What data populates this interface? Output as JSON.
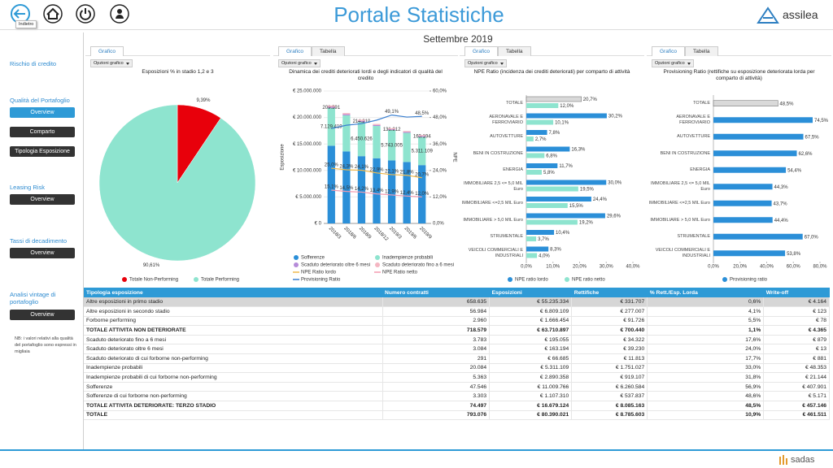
{
  "header": {
    "title": "Portale Statistiche",
    "back_tooltip": "Indietro",
    "logo": "assilea"
  },
  "subtitle": "Settembre 2019",
  "sidebar": {
    "sections": [
      {
        "title": "Rischio di credito",
        "buttons": []
      },
      {
        "title": "Qualità del Portafoglio",
        "buttons": [
          {
            "label": "Overview",
            "active": true
          },
          {
            "label": "Comparto",
            "active": false
          },
          {
            "label": "Tipologia Esposizione",
            "active": false
          }
        ]
      },
      {
        "title": "Leasing Risk",
        "buttons": [
          {
            "label": "Overview",
            "active": false
          }
        ]
      },
      {
        "title": "Tassi di decadimento",
        "buttons": [
          {
            "label": "Overview",
            "active": false
          }
        ]
      },
      {
        "title": "Analisi vintage di portafoglio",
        "buttons": [
          {
            "label": "Overview",
            "active": false
          }
        ]
      }
    ],
    "note": "NB: i valori relativi alla qualità del portafoglio sono espressi in migliaia"
  },
  "chart_data": [
    {
      "type": "pie",
      "tabs": [
        "Grafico"
      ],
      "options": "Opzioni grafico",
      "title": "Esposizioni % in stadio 1,2 e 3",
      "categories": [
        "Totale Non-Performing",
        "Totale Performing"
      ],
      "values": [
        9.39,
        90.61
      ],
      "value_labels": [
        "9,39%",
        "90,61%"
      ],
      "colors": [
        "#e8000b",
        "#8ee4cf"
      ]
    },
    {
      "type": "bar_line",
      "tabs": [
        "Grafico",
        "Tabella"
      ],
      "options": "Opzioni grafico",
      "title": "Dinamica dei crediti deteriorati lordi e degli indicatori di qualità del credito",
      "y_label": "Esposizione",
      "y2_label": "NPE",
      "categories": [
        "2018/3",
        "2018/6",
        "2018/9",
        "2018/12",
        "2019/3",
        "2019/6",
        "2019/9"
      ],
      "ylim": [
        0,
        25000000
      ],
      "yticks": [
        {
          "value": 0,
          "label": "€ 0"
        },
        {
          "value": 5000000,
          "label": "€ 5.000.000"
        },
        {
          "value": 10000000,
          "label": "€ 10.000.000"
        },
        {
          "value": 15000000,
          "label": "€ 15.000.000"
        },
        {
          "value": 20000000,
          "label": "€ 20.000.000"
        },
        {
          "value": 25000000,
          "label": "€ 25.000.000"
        }
      ],
      "y2lim": [
        0,
        60
      ],
      "y2ticks": [
        {
          "value": 0,
          "label": "0,0%"
        },
        {
          "value": 12,
          "label": "12,0%"
        },
        {
          "value": 24,
          "label": "24,0%"
        },
        {
          "value": 36,
          "label": "36,0%"
        },
        {
          "value": 48,
          "label": "48,0%"
        },
        {
          "value": 60,
          "label": "60,0%"
        }
      ],
      "grid": true,
      "series": [
        {
          "name": "Sofferenze",
          "type": "bar",
          "color": "#2b8fd8",
          "values": [
            14670000,
            13600000,
            12700000,
            12300000,
            11900000,
            11600000,
            11009766
          ]
        },
        {
          "name": "Inadempienze probabili",
          "type": "bar",
          "color": "#8ee4cf",
          "values": [
            7129419,
            6800000,
            6450626,
            6100000,
            5743005,
            5500000,
            5311109
          ],
          "value_labels": [
            "7.129.419",
            null,
            "6.450.626",
            null,
            "5.743.005",
            null,
            "5.311.109"
          ]
        },
        {
          "name": "Scaduto deteriorato oltre 6 mesi",
          "type": "bar",
          "color": "#b58bd9",
          "values": [
            209591,
            210000,
            214210,
            170000,
            131212,
            150000,
            163194
          ],
          "value_labels": [
            "209.591",
            null,
            "214.210",
            null,
            "131.212",
            null,
            "163.194"
          ]
        },
        {
          "name": "Scaduto deteriorato fino a 6 mesi",
          "type": "bar",
          "color": "#f4b6c2",
          "values": [
            250000,
            230000,
            220000,
            210000,
            200000,
            200000,
            195055
          ]
        },
        {
          "name": "NPE Ratio lordo",
          "type": "line",
          "axis": "y2",
          "color": "#f0b84a",
          "values": [
            25.0,
            24.3,
            24.1,
            22.9,
            22.1,
            21.8,
            20.7
          ],
          "value_labels": [
            "25,0%",
            "24,3%",
            "24,1%",
            "22,9%",
            "22,1%",
            "21,8%",
            "20,7%"
          ]
        },
        {
          "name": "NPE Ratio netto",
          "type": "line",
          "axis": "y2",
          "color": "#f29ab0",
          "values": [
            15.1,
            14.5,
            14.2,
            13.4,
            12.9,
            12.4,
            12.0
          ],
          "value_labels": [
            "15,1%",
            "14,5%",
            "14,2%",
            "13,4%",
            "12,9%",
            "12,4%",
            "12,0%"
          ]
        },
        {
          "name": "Provisioning Ratio",
          "type": "line",
          "axis": "y2",
          "color": "#3a7fd0",
          "values": [
            43.0,
            44.5,
            45.2,
            46.8,
            49.1,
            48.2,
            48.5
          ],
          "value_labels": [
            null,
            null,
            null,
            null,
            "49,1%",
            null,
            "48,5%"
          ]
        }
      ]
    },
    {
      "type": "hbar",
      "tabs": [
        "Grafico",
        "Tabella"
      ],
      "options": "Opzioni grafico",
      "title": "NPE Ratio (incidenza dei crediti deteriorati) per comparto di attività",
      "categories": [
        "TOTALE",
        "AERONAVALE E FERROVIARIO",
        "AUTOVETTURE",
        "BENI IN COSTRUZIONE",
        "ENERGIA",
        "IMMOBILIARE 2,5 <= 5,0 MIL Euro",
        "IMMOBILIARE <=2,5 MIL Euro",
        "IMMOBILIARE > 5,0 MIL Euro",
        "STRUMENTALE",
        "VEICOLI COMMERCIALI E INDUSTRIALI"
      ],
      "xlim": [
        0,
        40
      ],
      "xticks": [
        {
          "value": 0,
          "label": "0,0%"
        },
        {
          "value": 10,
          "label": "10,0%"
        },
        {
          "value": 20,
          "label": "20,0%"
        },
        {
          "value": 30,
          "label": "30,0%"
        },
        {
          "value": 40,
          "label": "40,0%"
        }
      ],
      "series": [
        {
          "name": "NPE ratio lordo",
          "color": "#2b8fd8",
          "colors": [
            "#d9d9d9",
            "#2b8fd8",
            "#2b8fd8",
            "#2b8fd8",
            "#2b8fd8",
            "#2b8fd8",
            "#2b8fd8",
            "#2b8fd8",
            "#2b8fd8",
            "#2b8fd8"
          ],
          "values": [
            20.7,
            30.2,
            7.8,
            16.3,
            11.7,
            30.0,
            24.4,
            29.6,
            10.4,
            8.3
          ],
          "value_labels": [
            "20,7%",
            "30,2%",
            "7,8%",
            "16,3%",
            "11,7%",
            "30,0%",
            "24,4%",
            "29,6%",
            "10,4%",
            "8,3%"
          ]
        },
        {
          "name": "NPE ratio netto",
          "color": "#8ee4cf",
          "values": [
            12.0,
            10.1,
            2.7,
            6.8,
            5.8,
            19.5,
            15.5,
            19.2,
            3.7,
            4.0
          ],
          "value_labels": [
            "12,0%",
            "10,1%",
            "2,7%",
            "6,8%",
            "5,8%",
            "19,5%",
            "15,5%",
            "19,2%",
            "3,7%",
            "4,0%"
          ]
        }
      ]
    },
    {
      "type": "hbar",
      "tabs": [
        "Grafico",
        "Tabella"
      ],
      "options": "Opzioni grafico",
      "title": "Provisioning Ratio (rettifiche su esposizione deteriorata lorda per comparto di attività)",
      "categories": [
        "TOTALE",
        "AERONAVALE E FERROVIARIO",
        "AUTOVETTURE",
        "BENI IN COSTRUZIONE",
        "ENERGIA",
        "IMMOBILIARE 2,5 <= 5,0 MIL Euro",
        "IMMOBILIARE <=2,5 MIL Euro",
        "IMMOBILIARE > 5,0 MIL Euro",
        "STRUMENTALE",
        "VEICOLI COMMERCIALI E INDUSTRIALI"
      ],
      "xlim": [
        0,
        80
      ],
      "xticks": [
        {
          "value": 0,
          "label": "0,0%"
        },
        {
          "value": 20,
          "label": "20,0%"
        },
        {
          "value": 40,
          "label": "40,0%"
        },
        {
          "value": 60,
          "label": "60,0%"
        },
        {
          "value": 80,
          "label": "80,0%"
        }
      ],
      "series": [
        {
          "name": "Provisioning ratio",
          "color": "#2b8fd8",
          "colors": [
            "#d9d9d9",
            "#2b8fd8",
            "#2b8fd8",
            "#2b8fd8",
            "#2b8fd8",
            "#2b8fd8",
            "#2b8fd8",
            "#2b8fd8",
            "#2b8fd8",
            "#2b8fd8"
          ],
          "values": [
            48.5,
            74.5,
            67.5,
            62.6,
            54.4,
            44.3,
            43.7,
            44.4,
            67.0,
            53.8
          ],
          "value_labels": [
            "48,5%",
            "74,5%",
            "67,5%",
            "62,6%",
            "54,4%",
            "44,3%",
            "43,7%",
            "44,4%",
            "67,0%",
            "53,8%"
          ]
        }
      ]
    }
  ],
  "table": {
    "columns": [
      "Tipologia esposizione",
      "Numero contratti",
      "Esposizioni",
      "Rettifiche",
      "% Rett./Esp. Lorda",
      "Write-off"
    ],
    "rows": [
      {
        "selected": true,
        "cells": [
          "Altre esposizioni in primo stadio",
          "658.635",
          "€ 55.235.334",
          "€ 331.707",
          "0,6%",
          "€ 4.164"
        ]
      },
      {
        "cells": [
          "Altre esposizioni in secondo stadio",
          "56.984",
          "€ 6.809.109",
          "€ 277.007",
          "4,1%",
          "€ 123"
        ]
      },
      {
        "cells": [
          "Forborne performing",
          "2.960",
          "€ 1.666.454",
          "€ 91.726",
          "5,5%",
          "€ 78"
        ]
      },
      {
        "bold": true,
        "cells": [
          "TOTALE ATTIVITA NON DETERIORATE",
          "718.579",
          "€ 63.710.897",
          "€ 700.440",
          "1,1%",
          "€ 4.365"
        ]
      },
      {
        "cells": [
          "Scaduto deteriorato fino a 6 mesi",
          "3.783",
          "€ 195.055",
          "€ 34.322",
          "17,6%",
          "€ 879"
        ]
      },
      {
        "cells": [
          "Scaduto deteriorato oltre 6 mesi",
          "3.084",
          "€ 163.194",
          "€ 39.230",
          "24,0%",
          "€ 13"
        ]
      },
      {
        "cells": [
          "Scaduto deteriorato di cui forborne non-performing",
          "291",
          "€ 66.685",
          "€ 11.813",
          "17,7%",
          "€ 881"
        ]
      },
      {
        "cells": [
          "Inadempienze probabili",
          "20.084",
          "€ 5.311.109",
          "€ 1.751.027",
          "33,0%",
          "€ 48.353"
        ]
      },
      {
        "cells": [
          "Inadempienze probabili di cui forborne non-performing",
          "5.363",
          "€ 2.890.358",
          "€ 919.107",
          "31,8%",
          "€ 21.144"
        ]
      },
      {
        "cells": [
          "Sofferenze",
          "47.546",
          "€ 11.009.766",
          "€ 6.260.584",
          "56,9%",
          "€ 407.901"
        ]
      },
      {
        "cells": [
          "Sofferenze di cui forborne non-performing",
          "3.303",
          "€ 1.107.310",
          "€ 537.837",
          "48,6%",
          "€ 5.171"
        ]
      },
      {
        "bold": true,
        "cells": [
          "TOTALE ATTIVITA DETERIORATE: TERZO STADIO",
          "74.497",
          "€ 16.679.124",
          "€ 8.085.163",
          "48,5%",
          "€ 457.146"
        ]
      },
      {
        "bold": true,
        "cells": [
          "TOTALE",
          "793.076",
          "€ 80.390.021",
          "€ 8.785.603",
          "10,9%",
          "€ 461.511"
        ]
      }
    ]
  },
  "footer": {
    "logo": "sadas"
  }
}
